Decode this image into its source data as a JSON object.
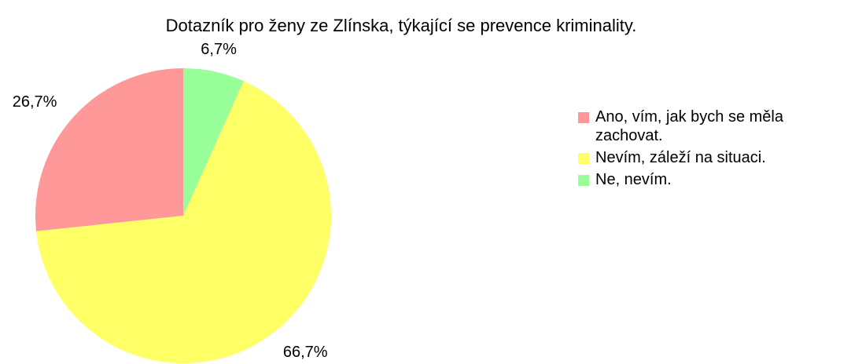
{
  "chart_data": {
    "type": "pie",
    "title": "Dotazník pro ženy ze Zlínska, týkající se prevence kriminality.",
    "categories": [
      "Ano, vím, jak bych se měla zachovat.",
      "Nevím, záleží na situaci.",
      "Ne, nevím."
    ],
    "values": [
      26.7,
      66.7,
      6.7
    ],
    "value_labels": [
      "26,7%",
      "66,7%",
      "6,7%"
    ],
    "colors": [
      "#ff9999",
      "#ffff66",
      "#99ff99"
    ],
    "legend": "right"
  }
}
